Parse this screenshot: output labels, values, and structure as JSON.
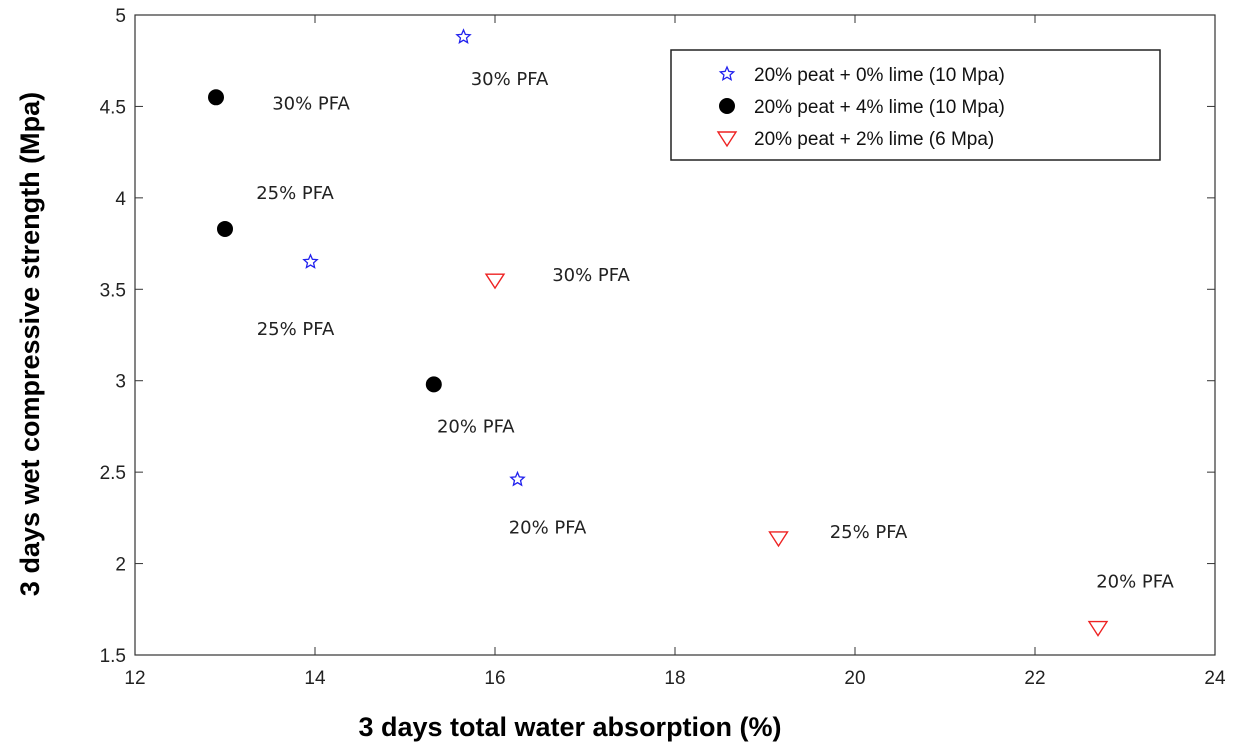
{
  "chart_data": {
    "type": "scatter",
    "title": "",
    "xlabel": "3 days total water absorption (%)",
    "ylabel": "3 days wet compressive strength (Mpa)",
    "xlim": [
      12,
      24
    ],
    "ylim": [
      1.5,
      5
    ],
    "xticks": [
      "12",
      "14",
      "16",
      "18",
      "20",
      "22",
      "24"
    ],
    "yticks": [
      "1.5",
      "2",
      "2.5",
      "3",
      "3.5",
      "4",
      "4.5",
      "5"
    ],
    "grid": false,
    "legend_position": "top-right",
    "series": [
      {
        "name": "20% peat + 0% lime (10 Mpa)",
        "marker": "star",
        "color": "#2222ee",
        "points": [
          {
            "x": 16.25,
            "y": 2.46,
            "label": "20% PFA"
          },
          {
            "x": 13.95,
            "y": 3.65,
            "label": "25% PFA"
          },
          {
            "x": 15.65,
            "y": 4.88,
            "label": "30% PFA"
          }
        ]
      },
      {
        "name": "20% peat + 4% lime (10 Mpa)",
        "marker": "circle",
        "color": "#000000",
        "points": [
          {
            "x": 15.32,
            "y": 2.98,
            "label": "20% PFA"
          },
          {
            "x": 13.0,
            "y": 3.83,
            "label": "25% PFA"
          },
          {
            "x": 12.9,
            "y": 4.55,
            "label": "30% PFA"
          }
        ]
      },
      {
        "name": "20% peat + 2% lime (6 Mpa)",
        "marker": "triangle-down",
        "color": "#ee2222",
        "points": [
          {
            "x": 22.7,
            "y": 1.65,
            "label": "20% PFA"
          },
          {
            "x": 19.15,
            "y": 2.14,
            "label": "25% PFA"
          },
          {
            "x": 16.0,
            "y": 3.55,
            "label": "30% PFA"
          }
        ]
      }
    ]
  }
}
